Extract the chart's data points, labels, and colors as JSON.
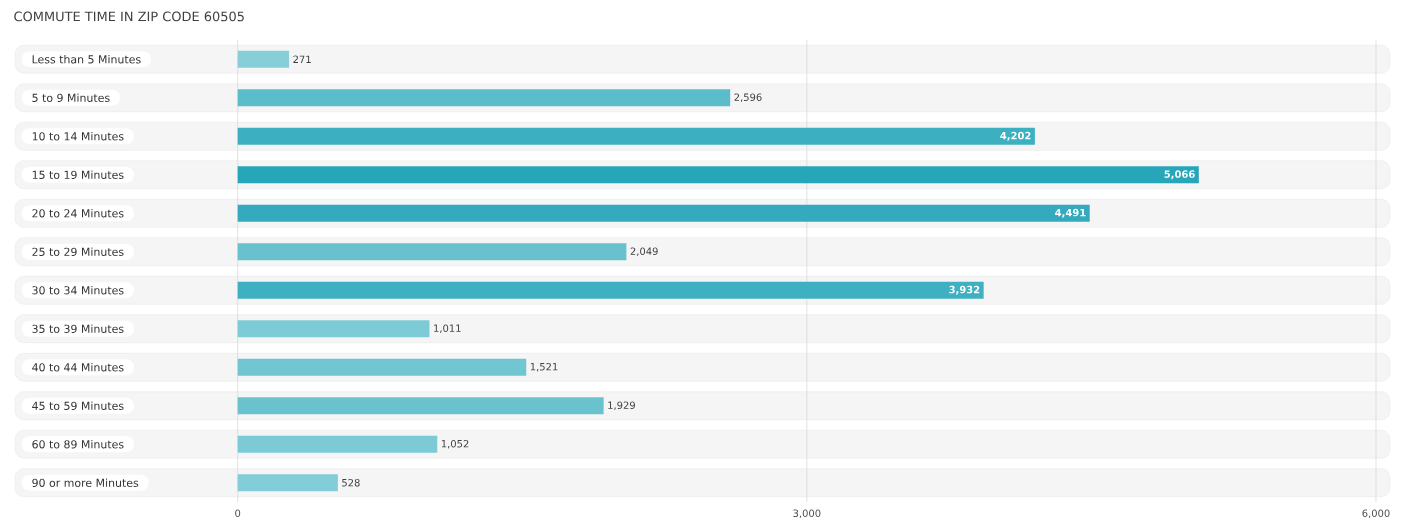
{
  "chart_data": {
    "type": "bar",
    "orientation": "horizontal",
    "title": "COMMUTE TIME IN ZIP CODE 60505",
    "categories": [
      "Less than 5 Minutes",
      "5 to 9 Minutes",
      "10 to 14 Minutes",
      "15 to 19 Minutes",
      "20 to 24 Minutes",
      "25 to 29 Minutes",
      "30 to 34 Minutes",
      "35 to 39 Minutes",
      "40 to 44 Minutes",
      "45 to 59 Minutes",
      "60 to 89 Minutes",
      "90 or more Minutes"
    ],
    "values": [
      271,
      2596,
      4202,
      5066,
      4491,
      2049,
      3932,
      1011,
      1521,
      1929,
      1052,
      528
    ],
    "value_labels": [
      "271",
      "2,596",
      "4,202",
      "5,066",
      "4,491",
      "2,049",
      "3,932",
      "1,011",
      "1,521",
      "1,929",
      "1,052",
      "528"
    ],
    "colors": [
      "#86cfd9",
      "#5bbcca",
      "#3cafc0",
      "#27a5b9",
      "#33aabd",
      "#68c1cd",
      "#3eb0c1",
      "#7dcbd6",
      "#71c6d1",
      "#69c2ce",
      "#7ccad5",
      "#82cdd8"
    ],
    "xlim": [
      -1200,
      6100
    ],
    "xticks": [
      {
        "value": 0,
        "label": "0"
      },
      {
        "value": 3000,
        "label": "3,000"
      },
      {
        "value": 6000,
        "label": "6,000"
      }
    ],
    "grid": "x"
  }
}
